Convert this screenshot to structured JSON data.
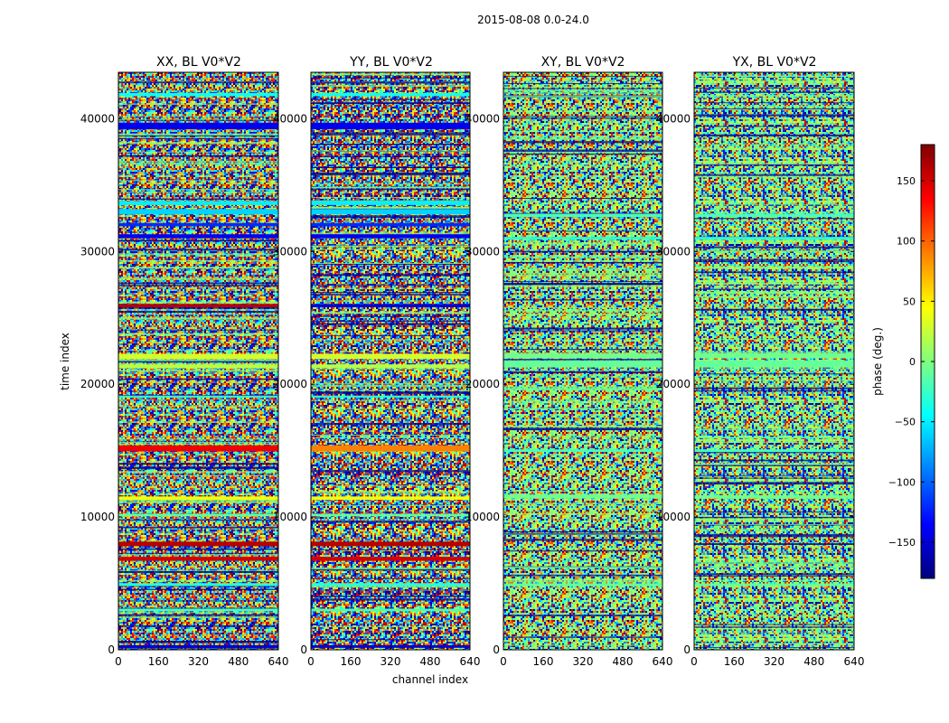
{
  "chart_data": {
    "type": "heatmap",
    "suptitle": "2015-08-08 0.0-24.0",
    "xlabel": "channel index",
    "ylabel": "time index",
    "xlim": [
      0,
      640
    ],
    "ylim": [
      0,
      43500
    ],
    "x_ticks": [
      0,
      160,
      320,
      480,
      640
    ],
    "y_ticks": [
      0,
      10000,
      20000,
      30000,
      40000
    ],
    "x_tick_labels": [
      "0",
      "160",
      "320",
      "480",
      "640"
    ],
    "y_tick_labels": [
      "0",
      "10000",
      "20000",
      "30000",
      "40000"
    ],
    "panels": [
      {
        "title": "XX, BL V0*V2",
        "bands": [
          {
            "t": 150,
            "h": 200,
            "phase": -150
          },
          {
            "t": 2900,
            "h": 200,
            "phase": -20
          },
          {
            "t": 4800,
            "h": 220,
            "phase": -30
          },
          {
            "t": 6700,
            "h": 300,
            "phase": 150
          },
          {
            "t": 7800,
            "h": 350,
            "phase": 160
          },
          {
            "t": 10050,
            "h": 200,
            "phase": -10
          },
          {
            "t": 11300,
            "h": 250,
            "phase": 40
          },
          {
            "t": 14950,
            "h": 450,
            "phase": 140
          },
          {
            "t": 19000,
            "h": 150,
            "phase": -30
          },
          {
            "t": 21200,
            "h": 300,
            "phase": 20
          },
          {
            "t": 21900,
            "h": 400,
            "phase": 30
          },
          {
            "t": 25800,
            "h": 250,
            "phase": 160
          },
          {
            "t": 31000,
            "h": 300,
            "phase": -140
          },
          {
            "t": 31900,
            "h": 250,
            "phase": -120
          },
          {
            "t": 32800,
            "h": 400,
            "phase": -60
          },
          {
            "t": 33500,
            "h": 300,
            "phase": -50
          },
          {
            "t": 39200,
            "h": 500,
            "phase": -140
          },
          {
            "t": 41700,
            "h": 250,
            "phase": -40
          }
        ]
      },
      {
        "title": "YY, BL V0*V2",
        "bands": [
          {
            "t": 150,
            "h": 200,
            "phase": -150
          },
          {
            "t": 2900,
            "h": 200,
            "phase": -20
          },
          {
            "t": 4800,
            "h": 220,
            "phase": -30
          },
          {
            "t": 6700,
            "h": 300,
            "phase": 150
          },
          {
            "t": 7800,
            "h": 350,
            "phase": 160
          },
          {
            "t": 10050,
            "h": 200,
            "phase": -10
          },
          {
            "t": 11300,
            "h": 250,
            "phase": 40
          },
          {
            "t": 14950,
            "h": 450,
            "phase": 90
          },
          {
            "t": 19000,
            "h": 150,
            "phase": -30
          },
          {
            "t": 21200,
            "h": 300,
            "phase": 20
          },
          {
            "t": 21900,
            "h": 400,
            "phase": 30
          },
          {
            "t": 25800,
            "h": 250,
            "phase": -150
          },
          {
            "t": 31000,
            "h": 300,
            "phase": -140
          },
          {
            "t": 31900,
            "h": 250,
            "phase": -120
          },
          {
            "t": 32800,
            "h": 400,
            "phase": -60
          },
          {
            "t": 33500,
            "h": 300,
            "phase": -50
          },
          {
            "t": 39200,
            "h": 500,
            "phase": -140
          },
          {
            "t": 41700,
            "h": 250,
            "phase": -40
          }
        ]
      },
      {
        "title": "XY, BL V0*V2",
        "bands": [
          {
            "t": 4800,
            "h": 200,
            "phase": -10
          },
          {
            "t": 11400,
            "h": 250,
            "phase": -5
          },
          {
            "t": 14900,
            "h": 200,
            "phase": -20
          },
          {
            "t": 21300,
            "h": 500,
            "phase": -10
          },
          {
            "t": 21950,
            "h": 400,
            "phase": -5
          },
          {
            "t": 30900,
            "h": 200,
            "phase": -30
          },
          {
            "t": 32600,
            "h": 250,
            "phase": -20
          }
        ]
      },
      {
        "title": "YX, BL V0*V2",
        "bands": [
          {
            "t": 4800,
            "h": 200,
            "phase": -10
          },
          {
            "t": 11400,
            "h": 250,
            "phase": -5
          },
          {
            "t": 14900,
            "h": 200,
            "phase": -20
          },
          {
            "t": 21300,
            "h": 500,
            "phase": -10
          },
          {
            "t": 21950,
            "h": 400,
            "phase": -5
          },
          {
            "t": 30900,
            "h": 200,
            "phase": -30
          },
          {
            "t": 32600,
            "h": 250,
            "phase": -20
          }
        ]
      }
    ],
    "colorbar": {
      "label": "phase (deg.)",
      "range": [
        -180,
        180
      ],
      "ticks": [
        150,
        100,
        50,
        0,
        -50,
        -100,
        -150
      ],
      "tick_labels": [
        "150",
        "100",
        "50",
        "0",
        "−50",
        "−100",
        "−150"
      ],
      "colormap": "jet",
      "colors": [
        "#00007f",
        "#0000ff",
        "#007fff",
        "#00ffff",
        "#7fff7f",
        "#ffff00",
        "#ff7f00",
        "#ff0000",
        "#7f0000"
      ]
    }
  }
}
